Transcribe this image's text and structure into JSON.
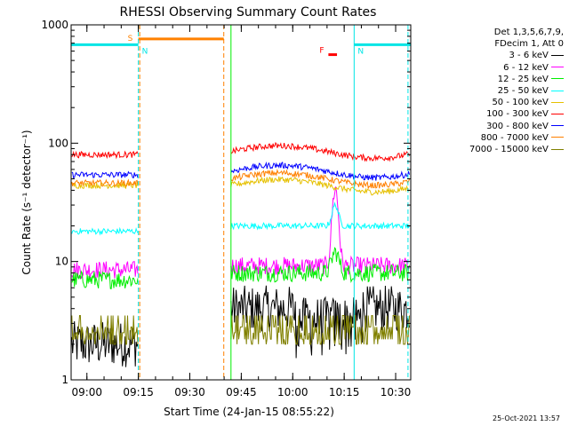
{
  "chart_data": {
    "type": "line",
    "title": "RHESSI Observing Summary Count Rates",
    "xlabel": "Start Time (24-Jan-15 08:55:22)",
    "ylabel": "Count Rate (s⁻¹ detector⁻¹)",
    "y_scale": "log",
    "ylim": [
      1,
      1000
    ],
    "y_ticks": [
      "1",
      "10",
      "100",
      "1000"
    ],
    "x_ticks": [
      "09:00",
      "09:15",
      "09:30",
      "09:45",
      "10:00",
      "10:15",
      "10:30"
    ],
    "x_tick_minutes": [
      4.6,
      19.6,
      34.6,
      49.6,
      64.6,
      79.6,
      94.6
    ],
    "xlim_minutes": [
      0,
      99
    ],
    "legend_header": [
      "Det 1,3,5,6,7,9,",
      "FDecim 1, Att 0"
    ],
    "series": [
      {
        "name": "3 - 6 keV",
        "color": "#000000",
        "pre": 2.0,
        "post": 4.0
      },
      {
        "name": "6 - 12 keV",
        "color": "#ff00ff",
        "pre": 8.5,
        "post": 9.2
      },
      {
        "name": "12 - 25 keV",
        "color": "#00ee00",
        "pre": 7.0,
        "post": 8.0
      },
      {
        "name": "25 - 50 keV",
        "color": "#00ffff",
        "pre": 18.0,
        "post": 20.0
      },
      {
        "name": "50 - 100 keV",
        "color": "#e6c000",
        "pre": 44.0,
        "post": 44.0
      },
      {
        "name": "100 - 300 keV",
        "color": "#ff0000",
        "pre": 80.0,
        "post": 85.0
      },
      {
        "name": "300 - 800 keV",
        "color": "#0000ff",
        "pre": 54.0,
        "post": 58.0
      },
      {
        "name": "800 - 7000 keV",
        "color": "#ff8000",
        "pre": 46.0,
        "post": 50.0
      },
      {
        "name": "7000 - 15000 keV",
        "color": "#808000",
        "pre": 2.4,
        "post": 2.6
      }
    ],
    "flags": [
      {
        "label": "S",
        "color": "#ff8000",
        "start_min": 19.6,
        "end_min": 44.5,
        "level": 760
      },
      {
        "label": "N",
        "color": "#00e5e5",
        "start_min": 0,
        "end_min": 19.6,
        "level": 680
      },
      {
        "label": "N",
        "color": "#00e5e5",
        "start_min": 82.5,
        "end_min": 99,
        "level": 680
      },
      {
        "label": "F",
        "color": "#ff0000",
        "start_min": 75.0,
        "end_min": 77.5,
        "level": 560
      }
    ],
    "gaps_minutes": [
      [
        19.6,
        46.6
      ]
    ],
    "flare_peak_minute": 77.0,
    "flare_peak_value_6_12keV": 40
  },
  "footer_date": "25-Oct-2021 13:57"
}
